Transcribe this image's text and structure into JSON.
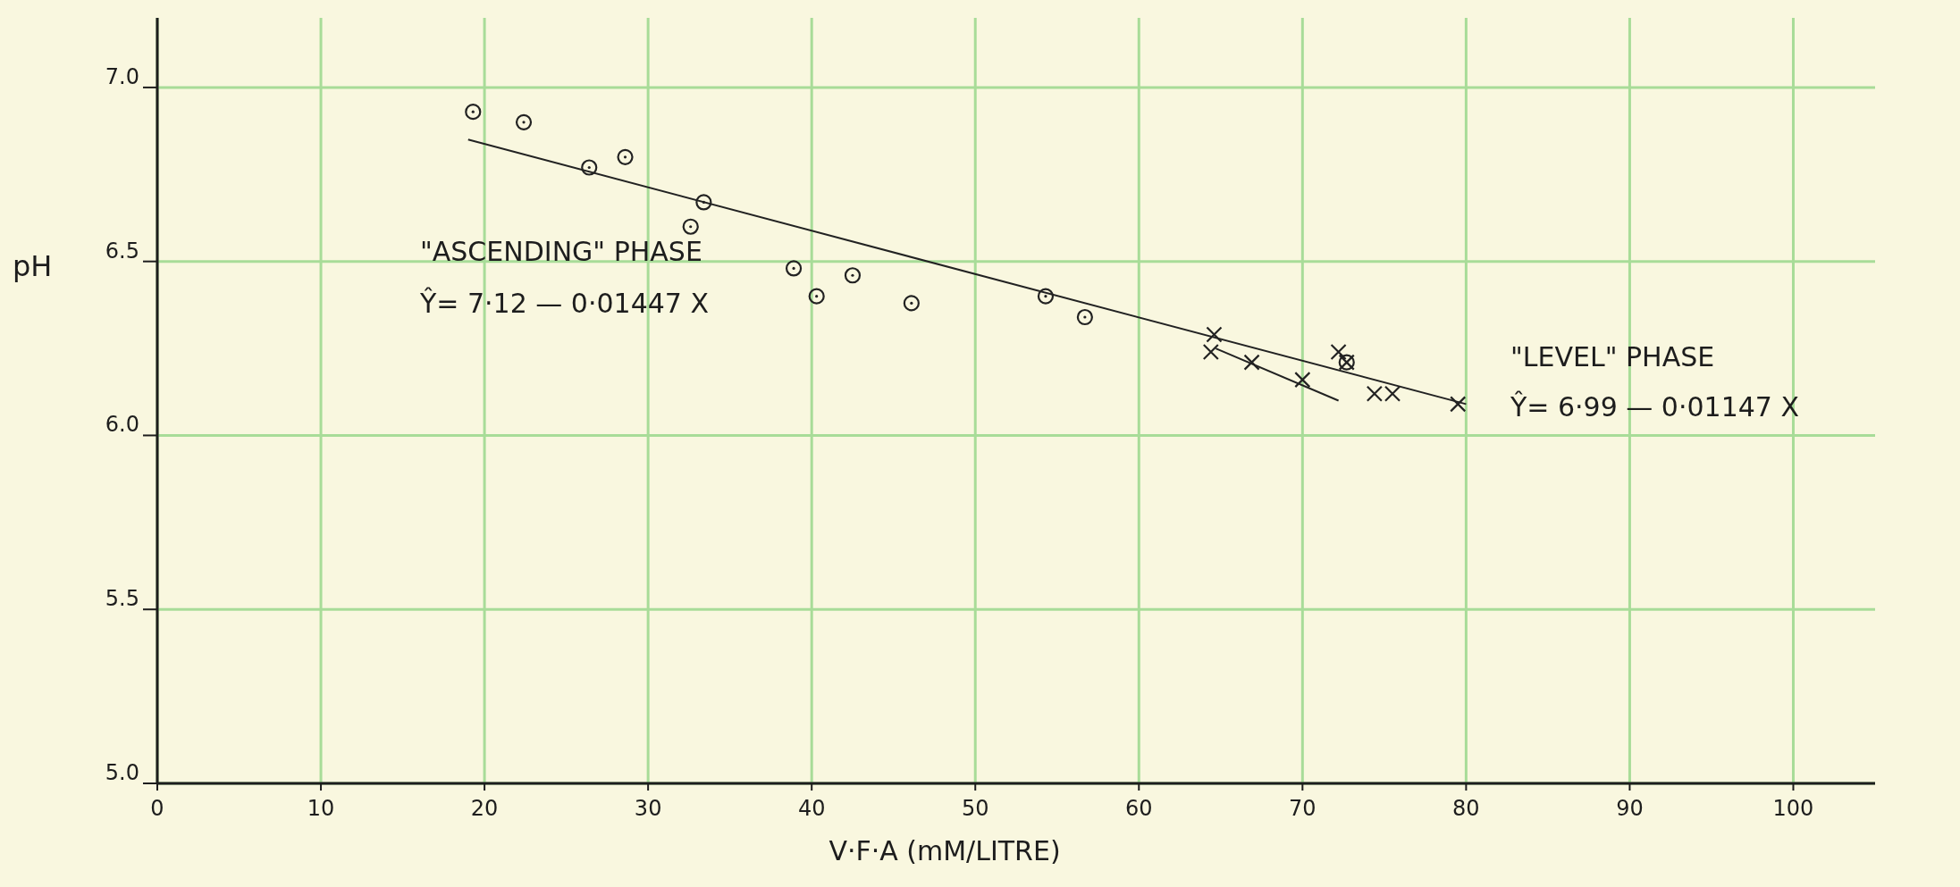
{
  "chart_data": {
    "type": "scatter",
    "xlabel": "V·F·A (mM/LITRE)",
    "ylabel": "pH",
    "xlim": [
      0,
      105
    ],
    "ylim": [
      5,
      7.2
    ],
    "xticks": [
      0,
      10,
      20,
      30,
      40,
      50,
      60,
      70,
      80,
      90,
      100
    ],
    "yticks": [
      {
        "value": 5,
        "label": "5.0"
      },
      {
        "value": 5.5,
        "label": "5.5"
      },
      {
        "value": 6,
        "label": "6.0"
      },
      {
        "value": 6.5,
        "label": "6.5"
      },
      {
        "value": 7,
        "label": "7.0"
      }
    ],
    "grid": true,
    "series": [
      {
        "marker": "circle",
        "color": "#222222",
        "x": [
          19.3,
          22.4,
          26.4,
          28.6,
          33.4,
          32.6,
          38.9,
          40.3,
          42.5,
          46.1,
          54.3,
          56.7,
          72.7
        ],
        "values": [
          6.93,
          6.9,
          6.77,
          6.8,
          6.67,
          6.6,
          6.48,
          6.4,
          6.46,
          6.38,
          6.4,
          6.34,
          6.21
        ]
      },
      {
        "marker": "cross",
        "color": "#222222",
        "x": [
          64.6,
          64.4,
          66.9,
          70.0,
          72.2,
          72.7,
          74.4,
          75.5,
          79.5
        ],
        "values": [
          6.29,
          6.24,
          6.21,
          6.16,
          6.24,
          6.21,
          6.12,
          6.12,
          6.09
        ]
      },
      {
        "type": "line",
        "marker": "none",
        "line_style": "solid",
        "color": "#222222",
        "x": [
          19,
          80
        ],
        "values": [
          6.85,
          6.09
        ]
      },
      {
        "type": "line",
        "marker": "none",
        "line_style": "solid",
        "color": "#222222",
        "x": [
          64.7,
          72.2
        ],
        "values": [
          6.25,
          6.1
        ]
      }
    ],
    "annotations": [
      "\"ASCENDING\" PHASE",
      "Ŷ= 7·12 — 0·01447 X",
      "\"LEVEL\" PHASE",
      "Ŷ= 6·99 — 0·01147 X"
    ]
  }
}
